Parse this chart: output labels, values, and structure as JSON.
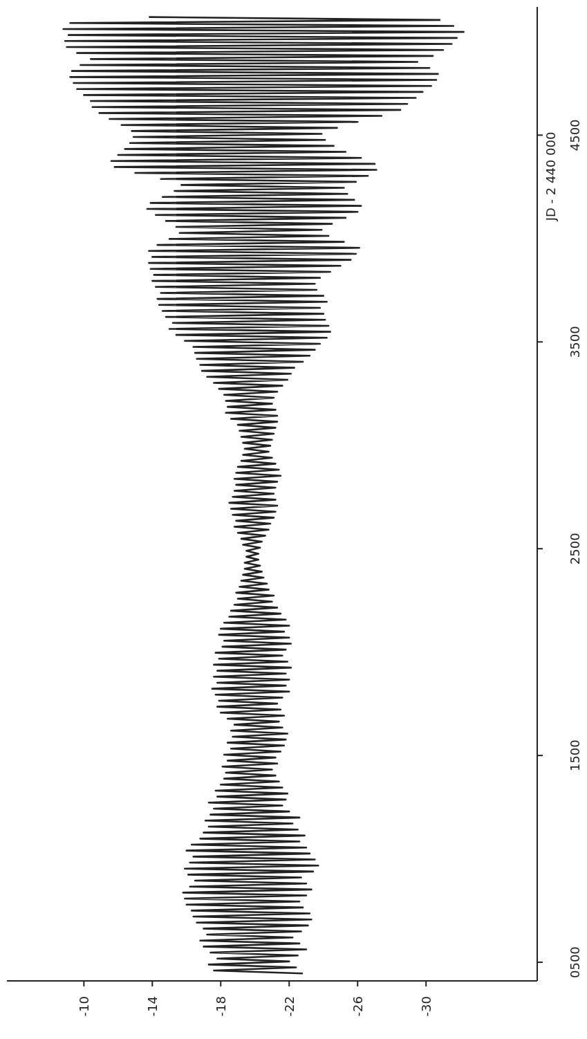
{
  "chart_data": {
    "type": "line",
    "ylabel": "JD - 2 440 000",
    "color": "#222222",
    "ylim": [
      410,
      5120
    ],
    "xlim": [
      -5.5,
      -36.5
    ],
    "yticks": [
      {
        "value": 500,
        "label": "0500"
      },
      1500,
      2500,
      3500,
      4500
    ],
    "xticks": [
      -10,
      -14,
      -18,
      -22,
      -26,
      -30
    ],
    "values": [
      446,
      460,
      475,
      489,
      504,
      518,
      533,
      547,
      562,
      576,
      591,
      605,
      620,
      634,
      649,
      663,
      678,
      692,
      707,
      721,
      736,
      750,
      765,
      779,
      794,
      808,
      823,
      837,
      852,
      866,
      881,
      895,
      910,
      924,
      939,
      953,
      968,
      982,
      997,
      1011,
      1026,
      1040,
      1055,
      1069,
      1084,
      1098,
      1113,
      1127,
      1142,
      1156,
      1171,
      1185,
      1200,
      1214,
      1229,
      1243,
      1258,
      1272,
      1287,
      1301,
      1316,
      1330,
      1345,
      1359,
      1374,
      1388,
      1403,
      1417,
      1432,
      1446,
      1461,
      1475,
      1490,
      1504,
      1519,
      1533,
      1548,
      1562,
      1577,
      1591,
      1606,
      1620,
      1635,
      1649,
      1664,
      1678,
      1693,
      1707,
      1722,
      1736,
      1751,
      1765,
      1780,
      1794,
      1809,
      1823,
      1838,
      1852,
      1867,
      1881,
      1896,
      1910,
      1925,
      1939,
      1954,
      1968,
      1983,
      1997,
      2012,
      2026,
      2041,
      2055,
      2070,
      2084,
      2099,
      2113,
      2128,
      2142,
      2157,
      2171,
      2186,
      2200,
      2215,
      2229,
      2244,
      2258,
      2273,
      2287,
      2302,
      2316,
      2331,
      2345,
      2360,
      2374,
      2389,
      2403,
      2418,
      2432,
      2447,
      2461,
      2476,
      2490,
      2505,
      2519,
      2534,
      2548,
      2563,
      2577,
      2592,
      2606,
      2621,
      2635,
      2650,
      2664,
      2679,
      2693,
      2708,
      2722,
      2737,
      2751,
      2766,
      2780,
      2795,
      2809,
      2824,
      2838,
      2853,
      2867,
      2882,
      2896,
      2911,
      2925,
      2940,
      2954,
      2969,
      2983,
      2998,
      3012,
      3027,
      3041,
      3056,
      3070,
      3085,
      3099,
      3114,
      3128,
      3143,
      3157,
      3172,
      3186,
      3201,
      3215,
      3230,
      3244,
      3259,
      3273,
      3288,
      3302,
      3317,
      3331,
      3346,
      3360,
      3375,
      3389,
      3404,
      3418,
      3433,
      3447,
      3462,
      3476,
      3491,
      3505,
      3520,
      3534,
      3549,
      3563,
      3578,
      3592,
      3607,
      3621,
      3636,
      3650,
      3665,
      3679,
      3694,
      3708,
      3723,
      3737,
      3752,
      3766,
      3781,
      3795,
      3810,
      3824,
      3839,
      3853,
      3868,
      3882,
      3897,
      3911,
      3926,
      3940,
      3955,
      3969,
      3984,
      3998,
      4013,
      4027,
      4042,
      4056,
      4071,
      4085,
      4100,
      4114,
      4129,
      4143,
      4158,
      4172,
      4187,
      4201,
      4216,
      4230,
      4245,
      4259,
      4274,
      4288,
      4303,
      4317,
      4332,
      4346,
      4361,
      4375,
      4390,
      4404,
      4419,
      4433,
      4448,
      4462,
      4477,
      4491,
      4506,
      4520,
      4535,
      4549,
      4564,
      4578,
      4593,
      4607,
      4622,
      4636,
      4651,
      4665,
      4680,
      4694,
      4709,
      4723,
      4738,
      4752,
      4767,
      4781,
      4796,
      4810,
      4825,
      4839,
      4854,
      4868,
      4883,
      4897,
      4912,
      4926,
      4941,
      4955,
      4970,
      4984,
      4999,
      5013,
      5028,
      5042,
      5057,
      5071
    ],
    "x": [
      -22.8,
      -17.6,
      -22.4,
      -17.3,
      -22.0,
      -17.8,
      -22.5,
      -17.4,
      -23.0,
      -17.0,
      -22.6,
      -16.8,
      -22.2,
      -17.2,
      -22.7,
      -17.0,
      -23.1,
      -16.6,
      -23.3,
      -16.4,
      -23.2,
      -16.3,
      -22.8,
      -16.0,
      -22.6,
      -15.9,
      -23.0,
      -15.8,
      -23.3,
      -16.2,
      -23.0,
      -16.5,
      -22.7,
      -16.1,
      -23.4,
      -15.9,
      -23.7,
      -16.2,
      -23.5,
      -16.4,
      -23.2,
      -16.0,
      -23.0,
      -16.3,
      -22.6,
      -16.8,
      -22.9,
      -17.0,
      -22.5,
      -17.3,
      -22.2,
      -17.1,
      -22.6,
      -17.4,
      -22.0,
      -17.6,
      -21.6,
      -17.3,
      -21.8,
      -17.8,
      -21.9,
      -17.7,
      -21.6,
      -18.0,
      -21.4,
      -18.2,
      -21.2,
      -18.3,
      -21.0,
      -18.1,
      -21.3,
      -18.4,
      -21.2,
      -18.2,
      -21.5,
      -18.6,
      -21.7,
      -18.4,
      -21.8,
      -18.7,
      -21.9,
      -18.6,
      -21.6,
      -18.8,
      -21.4,
      -18.4,
      -21.7,
      -18.0,
      -21.5,
      -17.8,
      -21.3,
      -17.9,
      -21.6,
      -17.7,
      -22.0,
      -17.5,
      -21.8,
      -17.8,
      -22.0,
      -17.6,
      -21.8,
      -17.8,
      -22.1,
      -17.6,
      -21.9,
      -17.9,
      -21.6,
      -17.7,
      -21.8,
      -18.1,
      -22.1,
      -18.2,
      -22.0,
      -17.9,
      -21.7,
      -18.0,
      -22.0,
      -18.2,
      -21.8,
      -18.5,
      -21.5,
      -18.6,
      -21.3,
      -18.8,
      -21.0,
      -19.0,
      -21.1,
      -18.9,
      -20.8,
      -19.1,
      -20.7,
      -19.2,
      -20.5,
      -19.3,
      -20.4,
      -19.4,
      -20.3,
      -19.4,
      -20.2,
      -19.5,
      -20.2,
      -19.5,
      -20.3,
      -19.3,
      -20.4,
      -19.2,
      -20.6,
      -19.0,
      -20.8,
      -18.8,
      -20.9,
      -18.9,
      -21.1,
      -18.7,
      -21.2,
      -18.6,
      -21.3,
      -18.5,
      -21.2,
      -18.7,
      -21.1,
      -18.8,
      -21.2,
      -18.9,
      -21.3,
      -18.8,
      -21.5,
      -18.9,
      -21.4,
      -19.0,
      -21.2,
      -19.2,
      -21.0,
      -19.3,
      -20.8,
      -19.4,
      -20.9,
      -19.3,
      -21.0,
      -19.2,
      -21.1,
      -19.1,
      -21.2,
      -19.0,
      -21.3,
      -18.6,
      -21.3,
      -18.3,
      -21.2,
      -18.4,
      -21.0,
      -18.3,
      -21.1,
      -18.2,
      -21.3,
      -17.9,
      -21.6,
      -17.6,
      -21.9,
      -17.2,
      -22.1,
      -16.9,
      -22.3,
      -16.8,
      -22.8,
      -16.6,
      -23.2,
      -16.5,
      -23.5,
      -16.4,
      -23.8,
      -15.9,
      -24.2,
      -15.4,
      -24.4,
      -15.0,
      -24.3,
      -15.2,
      -24.1,
      -14.8,
      -24.0,
      -14.6,
      -23.8,
      -14.4,
      -24.2,
      -14.3,
      -24.0,
      -14.5,
      -23.6,
      -14.2,
      -23.5,
      -14.0,
      -23.8,
      -14.1,
      -24.4,
      -13.9,
      -25.0,
      -13.8,
      -25.6,
      -14.0,
      -25.9,
      -13.8,
      -26.1,
      -14.3,
      -25.2,
      -15.0,
      -24.3,
      -15.6,
      -23.9,
      -15.4,
      -24.5,
      -14.8,
      -25.3,
      -14.2,
      -26.0,
      -13.7,
      -26.2,
      -13.9,
      -25.8,
      -14.6,
      -25.4,
      -15.3,
      -25.2,
      -15.7,
      -25.9,
      -14.5,
      -26.6,
      -13.0,
      -27.1,
      -11.8,
      -27.0,
      -11.6,
      -26.2,
      -12.0,
      -25.3,
      -12.4,
      -24.6,
      -12.7,
      -24.1,
      -12.9,
      -23.9,
      -12.8,
      -24.8,
      -12.2,
      -26.0,
      -11.5,
      -27.4,
      -10.9,
      -28.5,
      -10.5,
      -28.9,
      -10.4,
      -29.4,
      -10.0,
      -29.8,
      -9.6,
      -30.3,
      -9.4,
      -30.6,
      -9.2,
      -30.7,
      -9.3,
      -30.2,
      -9.8,
      -29.5,
      -10.4,
      -30.4,
      -9.6,
      -31.0,
      -9.0,
      -31.5,
      -8.9,
      -31.8,
      -9.1,
      -32.2,
      -8.8,
      -31.6,
      -9.2,
      -30.8,
      -13.8
    ]
  }
}
